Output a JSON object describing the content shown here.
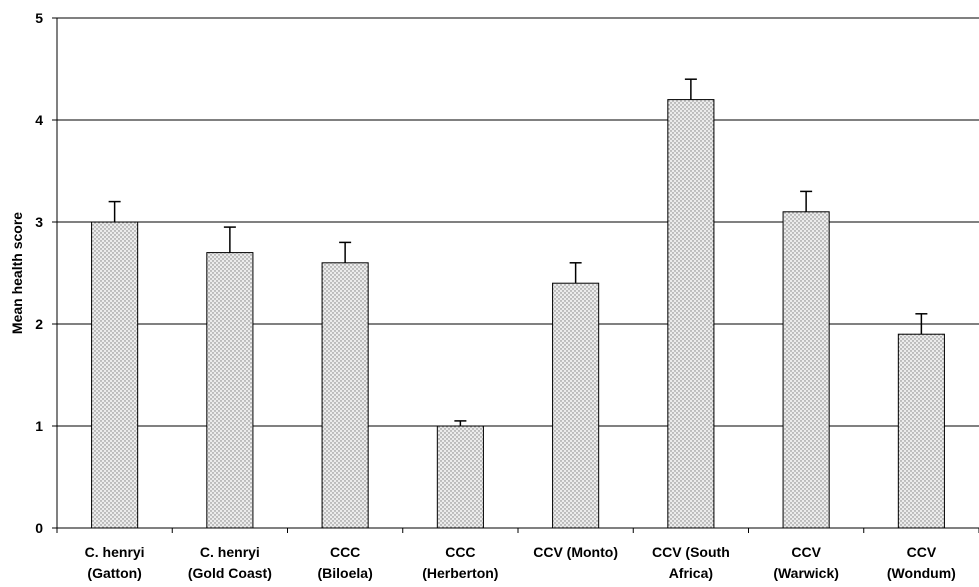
{
  "chart_data": {
    "type": "bar",
    "title": "",
    "xlabel": "",
    "ylabel": "Mean health score",
    "ylim": [
      0,
      5
    ],
    "yticks": [
      0,
      1,
      2,
      3,
      4,
      5
    ],
    "grid": true,
    "categories": [
      [
        "C. henryi",
        "(Gatton)"
      ],
      [
        "C. henryi",
        "(Gold Coast)"
      ],
      [
        "CCC",
        "(Biloela)"
      ],
      [
        "CCC",
        "(Herberton)"
      ],
      [
        "CCV (Monto)"
      ],
      [
        "CCV (South",
        "Africa)"
      ],
      [
        "CCV",
        "(Warwick)"
      ],
      [
        "CCV",
        "(Wondum)"
      ]
    ],
    "values": [
      3.0,
      2.7,
      2.6,
      1.0,
      2.4,
      4.2,
      3.1,
      1.9
    ],
    "error_plus": [
      0.2,
      0.25,
      0.2,
      0.05,
      0.2,
      0.2,
      0.2,
      0.2
    ],
    "bar_pattern": "stippled dots",
    "colors": {
      "bar_fill": "#e6e6e6",
      "dot": "#8a8a8a",
      "outline": "#000000",
      "grid": "#000000"
    }
  }
}
